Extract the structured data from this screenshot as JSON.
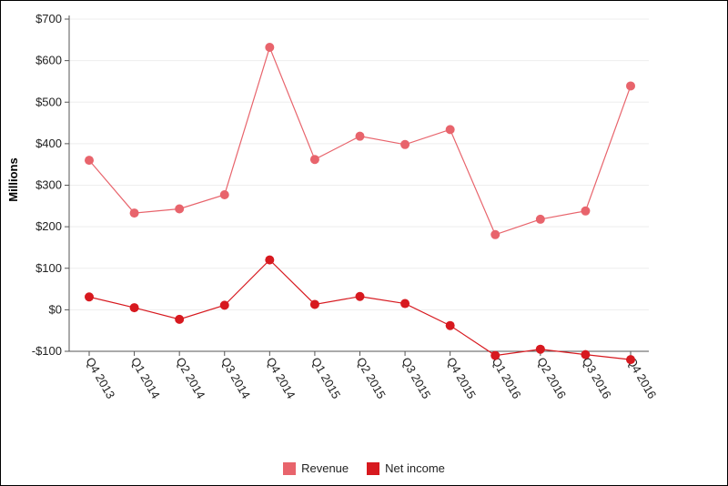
{
  "chart_data": {
    "type": "line",
    "title": "",
    "xlabel": "",
    "ylabel": "Millions",
    "categories": [
      "Q4 2013",
      "Q1 2014",
      "Q2 2014",
      "Q3 2014",
      "Q4 2014",
      "Q1 2015",
      "Q2 2015",
      "Q3 2015",
      "Q4 2015",
      "Q1 2016",
      "Q2 2016",
      "Q3 2016",
      "Q4 2016"
    ],
    "ylim": [
      -100,
      700
    ],
    "yticks": [
      -100,
      0,
      100,
      200,
      300,
      400,
      500,
      600,
      700
    ],
    "ytick_labels": [
      "-$100",
      "$0",
      "$100",
      "$200",
      "$300",
      "$400",
      "$500",
      "$600",
      "$700"
    ],
    "grid": true,
    "legend_position": "bottom-center",
    "series": [
      {
        "name": "Revenue",
        "color": "#e8646c",
        "values": [
          360,
          233,
          243,
          277,
          632,
          362,
          418,
          398,
          434,
          181,
          218,
          238,
          539
        ]
      },
      {
        "name": "Net income",
        "color": "#d7191f",
        "values": [
          31,
          5,
          -23,
          11,
          120,
          13,
          32,
          15,
          -38,
          -110,
          -95,
          -108,
          -120
        ]
      }
    ]
  }
}
